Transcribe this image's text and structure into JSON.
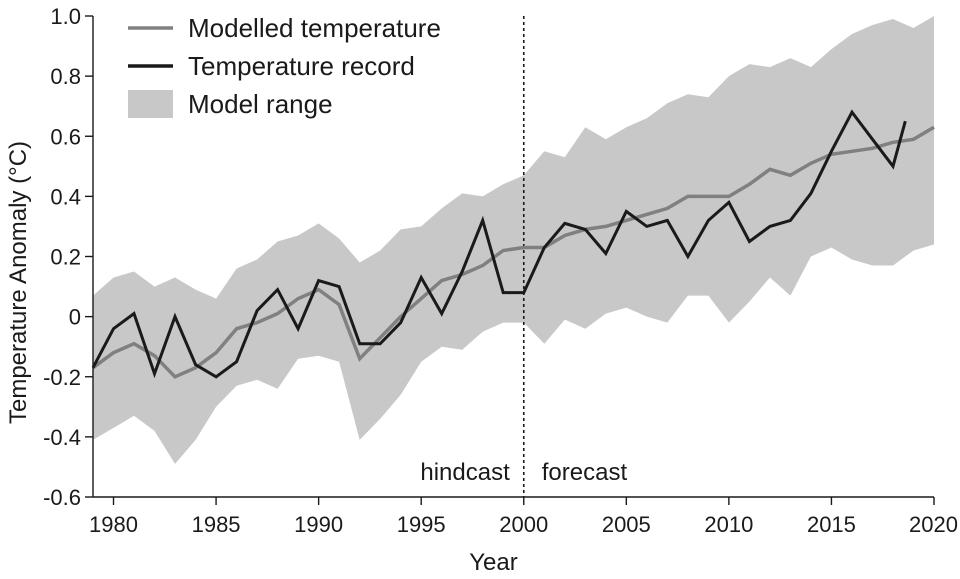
{
  "chart_data": {
    "type": "line",
    "title": "",
    "xlabel": "Year",
    "ylabel": "Temperature Anomaly (°C)",
    "xlim": [
      1979,
      2020
    ],
    "ylim": [
      -0.6,
      1.0
    ],
    "x_ticks": [
      1980,
      1985,
      1990,
      1995,
      2000,
      2005,
      2010,
      2015,
      2020
    ],
    "y_ticks": [
      -0.6,
      -0.4,
      -0.2,
      0,
      0.2,
      0.4,
      0.6,
      0.8,
      1.0
    ],
    "y_tick_labels": [
      "-0.6",
      "-0.4",
      "-0.2",
      "0",
      "0.2",
      "0.4",
      "0.6",
      "0.8",
      "1.0"
    ],
    "grid": false,
    "legend_position": "top-left",
    "colors": {
      "modelled": "#808080",
      "record": "#1a1a1a",
      "range": "#c8c8c8",
      "axis": "#1a1a1a"
    },
    "series": [
      {
        "name": "Modelled temperature",
        "style": "line",
        "color": "#808080",
        "x": [
          1979,
          1980,
          1981,
          1982,
          1983,
          1984,
          1985,
          1986,
          1987,
          1988,
          1989,
          1990,
          1991,
          1992,
          1993,
          1994,
          1995,
          1996,
          1997,
          1998,
          1999,
          2000,
          2001,
          2002,
          2003,
          2004,
          2005,
          2006,
          2007,
          2008,
          2009,
          2010,
          2011,
          2012,
          2013,
          2014,
          2015,
          2016,
          2017,
          2018,
          2019,
          2020
        ],
        "values": [
          -0.17,
          -0.12,
          -0.09,
          -0.13,
          -0.2,
          -0.17,
          -0.12,
          -0.04,
          -0.02,
          0.01,
          0.06,
          0.09,
          0.04,
          -0.14,
          -0.07,
          0.0,
          0.06,
          0.12,
          0.14,
          0.17,
          0.22,
          0.23,
          0.23,
          0.27,
          0.29,
          0.3,
          0.32,
          0.34,
          0.36,
          0.4,
          0.4,
          0.4,
          0.44,
          0.49,
          0.47,
          0.51,
          0.54,
          0.55,
          0.56,
          0.58,
          0.59,
          0.63
        ]
      },
      {
        "name": "Temperature record",
        "style": "line",
        "color": "#1a1a1a",
        "x": [
          1979,
          1980,
          1981,
          1982,
          1983,
          1984,
          1985,
          1986,
          1987,
          1988,
          1989,
          1990,
          1991,
          1992,
          1993,
          1994,
          1995,
          1996,
          1997,
          1998,
          1999,
          2000,
          2001,
          2002,
          2003,
          2004,
          2005,
          2006,
          2007,
          2008,
          2009,
          2010,
          2011,
          2012,
          2013,
          2014,
          2015,
          2016,
          2017,
          2018,
          2018.6
        ],
        "values": [
          -0.17,
          -0.04,
          0.01,
          -0.19,
          0.0,
          -0.16,
          -0.2,
          -0.15,
          0.02,
          0.09,
          -0.04,
          0.12,
          0.1,
          -0.09,
          -0.09,
          -0.02,
          0.13,
          0.01,
          0.15,
          0.32,
          0.08,
          0.08,
          0.23,
          0.31,
          0.29,
          0.21,
          0.35,
          0.3,
          0.32,
          0.2,
          0.32,
          0.38,
          0.25,
          0.3,
          0.32,
          0.41,
          0.55,
          0.68,
          0.59,
          0.5,
          0.65
        ]
      },
      {
        "name": "Model range",
        "style": "band",
        "color": "#c8c8c8",
        "x": [
          1979,
          1980,
          1981,
          1982,
          1983,
          1984,
          1985,
          1986,
          1987,
          1988,
          1989,
          1990,
          1991,
          1992,
          1993,
          1994,
          1995,
          1996,
          1997,
          1998,
          1999,
          2000,
          2001,
          2002,
          2003,
          2004,
          2005,
          2006,
          2007,
          2008,
          2009,
          2010,
          2011,
          2012,
          2013,
          2014,
          2015,
          2016,
          2017,
          2018,
          2019,
          2020
        ],
        "upper": [
          0.07,
          0.13,
          0.15,
          0.1,
          0.13,
          0.09,
          0.06,
          0.16,
          0.19,
          0.25,
          0.27,
          0.31,
          0.26,
          0.18,
          0.22,
          0.29,
          0.3,
          0.36,
          0.41,
          0.4,
          0.44,
          0.47,
          0.55,
          0.53,
          0.63,
          0.59,
          0.63,
          0.66,
          0.71,
          0.74,
          0.73,
          0.8,
          0.84,
          0.83,
          0.86,
          0.83,
          0.89,
          0.94,
          0.97,
          0.99,
          0.96,
          1.0
        ],
        "lower": [
          -0.41,
          -0.37,
          -0.33,
          -0.38,
          -0.49,
          -0.41,
          -0.3,
          -0.23,
          -0.21,
          -0.24,
          -0.14,
          -0.13,
          -0.15,
          -0.41,
          -0.34,
          -0.26,
          -0.15,
          -0.1,
          -0.11,
          -0.05,
          -0.02,
          -0.02,
          -0.09,
          -0.01,
          -0.04,
          0.01,
          0.03,
          0.0,
          -0.02,
          0.07,
          0.07,
          -0.02,
          0.05,
          0.13,
          0.07,
          0.2,
          0.23,
          0.19,
          0.17,
          0.17,
          0.22,
          0.24
        ]
      }
    ],
    "divider": {
      "x": 2000,
      "style": "dotted"
    },
    "annotations": [
      {
        "text": "hindcast",
        "x": 2000,
        "side": "left"
      },
      {
        "text": "forecast",
        "x": 2000,
        "side": "right"
      }
    ]
  }
}
